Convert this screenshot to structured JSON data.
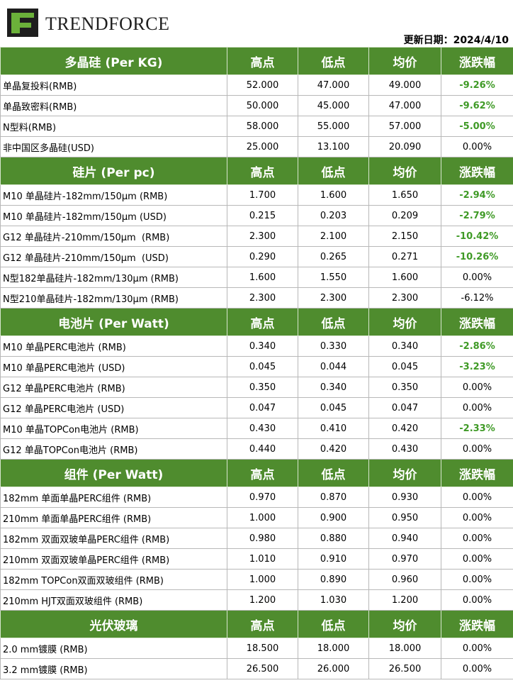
{
  "header": {
    "logo_text": "TRENDFORCE",
    "update_date": "更新日期：2024/4/10"
  },
  "table": {
    "highlight_color": "#3f9a26",
    "sections": [
      {
        "header": [
          "多晶硅 (Per KG)",
          "高点",
          "低点",
          "均价",
          "涨跌幅"
        ],
        "highlighted_rows": [
          0,
          1,
          2
        ],
        "rows": [
          [
            "单晶复投料(RMB)",
            "52.000",
            "47.000",
            "49.000",
            "-9.26%"
          ],
          [
            "单晶致密料(RMB)",
            "50.000",
            "45.000",
            "47.000",
            "-9.62%"
          ],
          [
            "N型料(RMB)",
            "58.000",
            "55.000",
            "57.000",
            "-5.00%"
          ],
          [
            "非中国区多晶硅(USD)",
            "25.000",
            "13.100",
            "20.090",
            "0.00%"
          ]
        ]
      },
      {
        "header": [
          "硅片 (Per pc)",
          "高点",
          "低点",
          "均价",
          "涨跌幅"
        ],
        "highlighted_rows": [
          0,
          1,
          2,
          3
        ],
        "rows": [
          [
            "M10 单晶硅片-182mm/150μm (RMB)",
            "1.700",
            "1.600",
            "1.650",
            "-2.94%"
          ],
          [
            "M10 单晶硅片-182mm/150μm (USD)",
            "0.215",
            "0.203",
            "0.209",
            "-2.79%"
          ],
          [
            "G12 单晶硅片-210mm/150μm  (RMB)",
            "2.300",
            "2.100",
            "2.150",
            "-10.42%"
          ],
          [
            "G12 单晶硅片-210mm/150μm  (USD)",
            "0.290",
            "0.265",
            "0.271",
            "-10.26%"
          ],
          [
            "N型182单晶硅片-182mm/130μm (RMB)",
            "1.600",
            "1.550",
            "1.600",
            "0.00%"
          ],
          [
            "N型210单晶硅片-182mm/130μm (RMB)",
            "2.300",
            "2.300",
            "2.300",
            "-6.12%"
          ]
        ]
      },
      {
        "header": [
          "电池片 (Per Watt)",
          "高点",
          "低点",
          "均价",
          "涨跌幅"
        ],
        "highlighted_rows": [
          0,
          1,
          4
        ],
        "rows": [
          [
            "M10 单晶PERC电池片 (RMB)",
            "0.340",
            "0.330",
            "0.340",
            "-2.86%"
          ],
          [
            "M10 单晶PERC电池片 (USD)",
            "0.045",
            "0.044",
            "0.045",
            "-3.23%"
          ],
          [
            "G12 单晶PERC电池片 (RMB)",
            "0.350",
            "0.340",
            "0.350",
            "0.00%"
          ],
          [
            "G12 单晶PERC电池片 (USD)",
            "0.047",
            "0.045",
            "0.047",
            "0.00%"
          ],
          [
            "M10 单晶TOPCon电池片 (RMB)",
            "0.430",
            "0.410",
            "0.420",
            "-2.33%"
          ],
          [
            "G12 单晶TOPCon电池片 (RMB)",
            "0.440",
            "0.420",
            "0.430",
            "0.00%"
          ]
        ]
      },
      {
        "header": [
          "组件 (Per Watt)",
          "高点",
          "低点",
          "均价",
          "涨跌幅"
        ],
        "highlighted_rows": [],
        "rows": [
          [
            "182mm 单面单晶PERC组件 (RMB)",
            "0.970",
            "0.870",
            "0.930",
            "0.00%"
          ],
          [
            "210mm 单面单晶PERC组件 (RMB)",
            "1.000",
            "0.900",
            "0.950",
            "0.00%"
          ],
          [
            "182mm 双面双玻单晶PERC组件 (RMB)",
            "0.980",
            "0.880",
            "0.940",
            "0.00%"
          ],
          [
            "210mm 双面双玻单晶PERC组件 (RMB)",
            "1.010",
            "0.910",
            "0.970",
            "0.00%"
          ],
          [
            "182mm TOPCon双面双玻组件 (RMB)",
            "1.000",
            "0.890",
            "0.960",
            "0.00%"
          ],
          [
            "210mm HJT双面双玻组件 (RMB)",
            "1.200",
            "1.030",
            "1.200",
            "0.00%"
          ]
        ]
      },
      {
        "header": [
          "光伏玻璃",
          "高点",
          "低点",
          "均价",
          "涨跌幅"
        ],
        "highlighted_rows": [],
        "rows": [
          [
            "2.0 mm镀膜 (RMB)",
            "18.500",
            "18.000",
            "18.000",
            "0.00%"
          ],
          [
            "3.2 mm镀膜 (RMB)",
            "26.500",
            "26.000",
            "26.500",
            "0.00%"
          ]
        ]
      }
    ]
  }
}
